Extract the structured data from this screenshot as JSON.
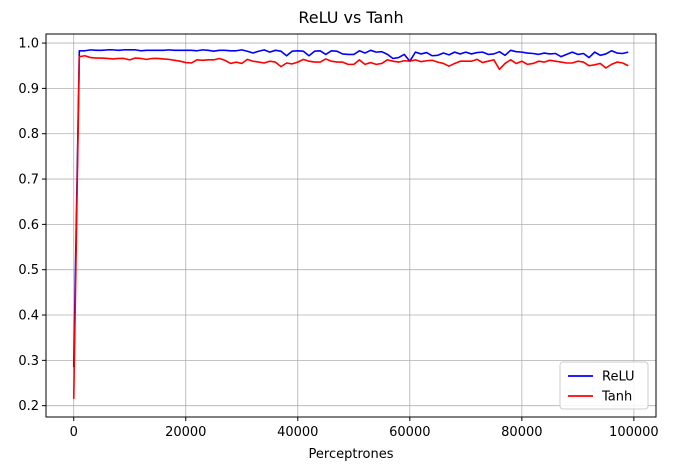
{
  "chart_data": {
    "type": "line",
    "title": "ReLU vs Tanh",
    "xlabel": "Perceptrones",
    "ylabel": "",
    "xlim": [
      -4950,
      103950
    ],
    "ylim": [
      0.175,
      1.02
    ],
    "xticks": [
      0,
      20000,
      40000,
      60000,
      80000,
      100000
    ],
    "xtick_labels": [
      "0",
      "20000",
      "40000",
      "60000",
      "80000",
      "100000"
    ],
    "yticks": [
      0.2,
      0.3,
      0.4,
      0.5,
      0.6,
      0.7,
      0.8,
      0.9,
      1.0
    ],
    "ytick_labels": [
      "0.2",
      "0.3",
      "0.4",
      "0.5",
      "0.6",
      "0.7",
      "0.8",
      "0.9",
      "1.0"
    ],
    "grid": true,
    "legend_position": "lower right",
    "x": [
      0,
      1000,
      2000,
      3000,
      4000,
      5000,
      6000,
      7000,
      8000,
      9000,
      10000,
      11000,
      12000,
      13000,
      14000,
      15000,
      16000,
      17000,
      18000,
      19000,
      20000,
      21000,
      22000,
      23000,
      24000,
      25000,
      26000,
      27000,
      28000,
      29000,
      30000,
      31000,
      32000,
      33000,
      34000,
      35000,
      36000,
      37000,
      38000,
      39000,
      40000,
      41000,
      42000,
      43000,
      44000,
      45000,
      46000,
      47000,
      48000,
      49000,
      50000,
      51000,
      52000,
      53000,
      54000,
      55000,
      56000,
      57000,
      58000,
      59000,
      60000,
      61000,
      62000,
      63000,
      64000,
      65000,
      66000,
      67000,
      68000,
      69000,
      70000,
      71000,
      72000,
      73000,
      74000,
      75000,
      76000,
      77000,
      78000,
      79000,
      80000,
      81000,
      82000,
      83000,
      84000,
      85000,
      86000,
      87000,
      88000,
      89000,
      90000,
      91000,
      92000,
      93000,
      94000,
      95000,
      96000,
      97000,
      98000,
      99000
    ],
    "series": [
      {
        "name": "ReLU",
        "color": "#0000ff",
        "values": [
          0.285,
          0.983,
          0.983,
          0.985,
          0.984,
          0.984,
          0.985,
          0.985,
          0.984,
          0.985,
          0.985,
          0.985,
          0.983,
          0.984,
          0.984,
          0.984,
          0.984,
          0.985,
          0.984,
          0.984,
          0.984,
          0.984,
          0.983,
          0.985,
          0.984,
          0.982,
          0.984,
          0.984,
          0.983,
          0.983,
          0.985,
          0.982,
          0.978,
          0.982,
          0.985,
          0.98,
          0.984,
          0.982,
          0.972,
          0.982,
          0.983,
          0.982,
          0.972,
          0.982,
          0.983,
          0.975,
          0.983,
          0.982,
          0.976,
          0.975,
          0.975,
          0.983,
          0.978,
          0.984,
          0.98,
          0.981,
          0.975,
          0.966,
          0.968,
          0.975,
          0.96,
          0.98,
          0.976,
          0.979,
          0.972,
          0.973,
          0.978,
          0.974,
          0.98,
          0.976,
          0.98,
          0.976,
          0.979,
          0.98,
          0.975,
          0.976,
          0.981,
          0.973,
          0.984,
          0.981,
          0.98,
          0.978,
          0.977,
          0.975,
          0.978,
          0.976,
          0.977,
          0.97,
          0.975,
          0.98,
          0.975,
          0.977,
          0.968,
          0.98,
          0.973,
          0.976,
          0.983,
          0.978,
          0.977,
          0.98
        ]
      },
      {
        "name": "Tanh",
        "color": "#ff0000",
        "values": [
          0.215,
          0.97,
          0.972,
          0.968,
          0.967,
          0.967,
          0.966,
          0.965,
          0.966,
          0.966,
          0.963,
          0.967,
          0.966,
          0.964,
          0.966,
          0.966,
          0.965,
          0.964,
          0.962,
          0.96,
          0.957,
          0.956,
          0.963,
          0.962,
          0.963,
          0.963,
          0.966,
          0.962,
          0.955,
          0.958,
          0.955,
          0.964,
          0.96,
          0.958,
          0.956,
          0.96,
          0.958,
          0.948,
          0.956,
          0.954,
          0.958,
          0.964,
          0.96,
          0.958,
          0.958,
          0.965,
          0.96,
          0.958,
          0.958,
          0.953,
          0.953,
          0.963,
          0.953,
          0.957,
          0.953,
          0.955,
          0.963,
          0.96,
          0.958,
          0.961,
          0.96,
          0.963,
          0.959,
          0.961,
          0.962,
          0.958,
          0.955,
          0.949,
          0.955,
          0.96,
          0.96,
          0.96,
          0.964,
          0.957,
          0.96,
          0.963,
          0.942,
          0.955,
          0.963,
          0.955,
          0.96,
          0.953,
          0.955,
          0.96,
          0.958,
          0.962,
          0.96,
          0.958,
          0.956,
          0.956,
          0.96,
          0.958,
          0.95,
          0.952,
          0.955,
          0.945,
          0.953,
          0.958,
          0.956,
          0.95
        ]
      }
    ]
  }
}
